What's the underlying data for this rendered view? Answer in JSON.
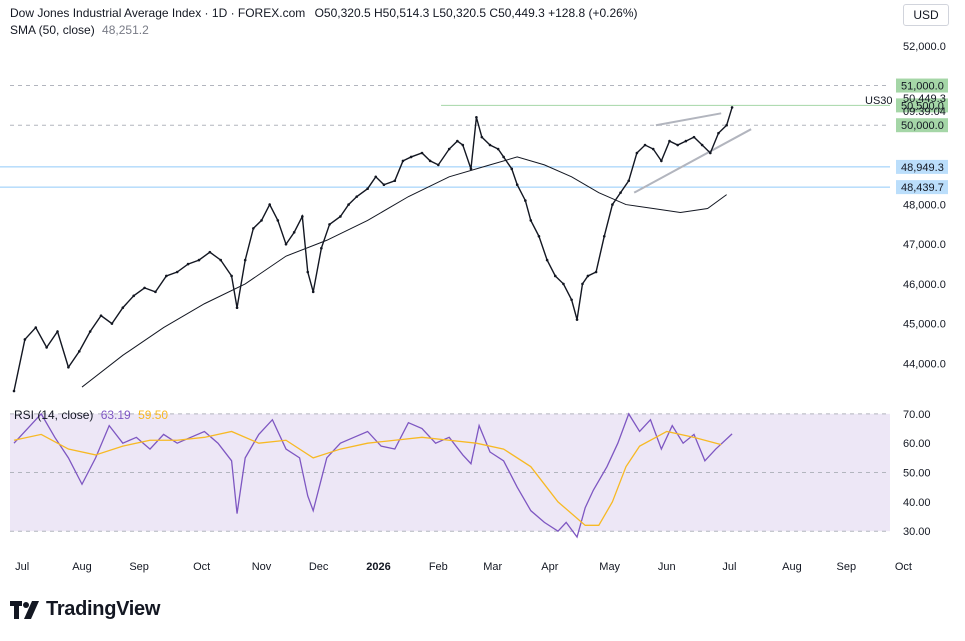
{
  "header": {
    "title": "Dow Jones Industrial Average Index · 1D · FOREX.com",
    "ohlc": "O50,320.5  H50,514.3  L50,320.5  C50,449.3  +128.8 (+0.26%)",
    "sma_label": "SMA (50, close)",
    "sma_value": "48,251.2"
  },
  "currency": "USD",
  "rsi_header": {
    "label": "RSI (14, close)",
    "value1": "63.19",
    "value2": "59.50"
  },
  "symbol_tag": "US30",
  "price_tags": [
    {
      "text": "51,000.0",
      "bg": "#a5d6a7",
      "value": 51000
    },
    {
      "text": "50,500.0",
      "bg": "#a5d6a7",
      "value": 50500
    },
    {
      "text": "50,000.0",
      "bg": "#a5d6a7",
      "value": 50000
    },
    {
      "text": "48,949.3",
      "bg": "#bbdefb",
      "value": 48949.3
    },
    {
      "text": "48,439.7",
      "bg": "#bbdefb",
      "value": 48439.7
    }
  ],
  "last_price": {
    "price": "50,449.3",
    "countdown": "09:39:04"
  },
  "brand": "TradingView",
  "colors": {
    "candle": "#131722",
    "sma": "#131722",
    "rsi": "#7e57c2",
    "rsi_ma": "#f7b924",
    "rsi_band": "#ede7f6",
    "green_tag": "#a5d6a7",
    "blue_tag": "#bbdefb",
    "hline_blue": "#90caf9",
    "trendline": "#b2b5be"
  },
  "chart_data": {
    "type": "line",
    "price": {
      "title": "Dow Jones Industrial Average Index",
      "ylim": [
        43200,
        52400
      ],
      "yticks": [
        44000,
        45000,
        46000,
        47000,
        48000,
        51000,
        52000
      ],
      "ytick_labels": [
        "44,000.0",
        "45,000.0",
        "46,000.0",
        "47,000.0",
        "48,000.0",
        "51,000.0",
        "52,000.0"
      ],
      "close_series": [
        {
          "t": 0,
          "v": 43300
        },
        {
          "t": 0.4,
          "v": 44600
        },
        {
          "t": 0.8,
          "v": 44900
        },
        {
          "t": 1.2,
          "v": 44400
        },
        {
          "t": 1.6,
          "v": 44800
        },
        {
          "t": 2.0,
          "v": 43900
        },
        {
          "t": 2.4,
          "v": 44300
        },
        {
          "t": 2.8,
          "v": 44800
        },
        {
          "t": 3.2,
          "v": 45200
        },
        {
          "t": 3.6,
          "v": 45000
        },
        {
          "t": 4.0,
          "v": 45400
        },
        {
          "t": 4.4,
          "v": 45700
        },
        {
          "t": 4.8,
          "v": 45900
        },
        {
          "t": 5.2,
          "v": 45800
        },
        {
          "t": 5.6,
          "v": 46200
        },
        {
          "t": 6.0,
          "v": 46300
        },
        {
          "t": 6.4,
          "v": 46500
        },
        {
          "t": 6.8,
          "v": 46600
        },
        {
          "t": 7.2,
          "v": 46800
        },
        {
          "t": 7.6,
          "v": 46600
        },
        {
          "t": 8.0,
          "v": 46200
        },
        {
          "t": 8.2,
          "v": 45400
        },
        {
          "t": 8.5,
          "v": 46600
        },
        {
          "t": 8.8,
          "v": 47400
        },
        {
          "t": 9.1,
          "v": 47600
        },
        {
          "t": 9.4,
          "v": 48000
        },
        {
          "t": 9.7,
          "v": 47600
        },
        {
          "t": 10.0,
          "v": 47000
        },
        {
          "t": 10.3,
          "v": 47300
        },
        {
          "t": 10.6,
          "v": 47700
        },
        {
          "t": 10.8,
          "v": 46300
        },
        {
          "t": 11.0,
          "v": 45800
        },
        {
          "t": 11.3,
          "v": 46900
        },
        {
          "t": 11.6,
          "v": 47500
        },
        {
          "t": 12.0,
          "v": 47700
        },
        {
          "t": 12.3,
          "v": 48000
        },
        {
          "t": 12.6,
          "v": 48200
        },
        {
          "t": 13.0,
          "v": 48400
        },
        {
          "t": 13.3,
          "v": 48700
        },
        {
          "t": 13.6,
          "v": 48500
        },
        {
          "t": 14.0,
          "v": 48600
        },
        {
          "t": 14.3,
          "v": 49100
        },
        {
          "t": 14.6,
          "v": 49200
        },
        {
          "t": 15.0,
          "v": 49300
        },
        {
          "t": 15.3,
          "v": 49100
        },
        {
          "t": 15.6,
          "v": 49000
        },
        {
          "t": 16.0,
          "v": 49400
        },
        {
          "t": 16.3,
          "v": 49600
        },
        {
          "t": 16.5,
          "v": 49500
        },
        {
          "t": 16.8,
          "v": 48900
        },
        {
          "t": 17.0,
          "v": 50200
        },
        {
          "t": 17.2,
          "v": 49700
        },
        {
          "t": 17.5,
          "v": 49500
        },
        {
          "t": 17.8,
          "v": 49400
        },
        {
          "t": 18.0,
          "v": 49200
        },
        {
          "t": 18.3,
          "v": 48900
        },
        {
          "t": 18.5,
          "v": 48500
        },
        {
          "t": 18.8,
          "v": 48100
        },
        {
          "t": 19.0,
          "v": 47600
        },
        {
          "t": 19.3,
          "v": 47200
        },
        {
          "t": 19.6,
          "v": 46600
        },
        {
          "t": 19.9,
          "v": 46200
        },
        {
          "t": 20.2,
          "v": 46000
        },
        {
          "t": 20.5,
          "v": 45600
        },
        {
          "t": 20.7,
          "v": 45100
        },
        {
          "t": 20.9,
          "v": 46000
        },
        {
          "t": 21.1,
          "v": 46200
        },
        {
          "t": 21.4,
          "v": 46300
        },
        {
          "t": 21.7,
          "v": 47200
        },
        {
          "t": 22.0,
          "v": 48000
        },
        {
          "t": 22.3,
          "v": 48300
        },
        {
          "t": 22.6,
          "v": 48600
        },
        {
          "t": 22.9,
          "v": 49300
        },
        {
          "t": 23.2,
          "v": 49500
        },
        {
          "t": 23.5,
          "v": 49400
        },
        {
          "t": 23.8,
          "v": 49100
        },
        {
          "t": 24.1,
          "v": 49600
        },
        {
          "t": 24.4,
          "v": 49500
        },
        {
          "t": 24.7,
          "v": 49600
        },
        {
          "t": 25.0,
          "v": 49700
        },
        {
          "t": 25.3,
          "v": 49500
        },
        {
          "t": 25.6,
          "v": 49300
        },
        {
          "t": 25.9,
          "v": 49800
        },
        {
          "t": 26.2,
          "v": 50000
        },
        {
          "t": 26.4,
          "v": 50449.3
        }
      ],
      "sma_series": [
        {
          "t": 2.5,
          "v": 43400
        },
        {
          "t": 4.0,
          "v": 44200
        },
        {
          "t": 5.5,
          "v": 44900
        },
        {
          "t": 7.0,
          "v": 45500
        },
        {
          "t": 8.5,
          "v": 46000
        },
        {
          "t": 10.0,
          "v": 46700
        },
        {
          "t": 11.5,
          "v": 47100
        },
        {
          "t": 13.0,
          "v": 47600
        },
        {
          "t": 14.5,
          "v": 48200
        },
        {
          "t": 16.0,
          "v": 48700
        },
        {
          "t": 17.5,
          "v": 49000
        },
        {
          "t": 18.5,
          "v": 49200
        },
        {
          "t": 19.5,
          "v": 49000
        },
        {
          "t": 20.5,
          "v": 48700
        },
        {
          "t": 21.5,
          "v": 48300
        },
        {
          "t": 22.5,
          "v": 48000
        },
        {
          "t": 23.5,
          "v": 47900
        },
        {
          "t": 24.5,
          "v": 47800
        },
        {
          "t": 25.5,
          "v": 47900
        },
        {
          "t": 26.2,
          "v": 48251.2
        }
      ],
      "trendlines": [
        {
          "from": {
            "t": 22.8,
            "v": 48300
          },
          "to": {
            "t": 27.1,
            "v": 49900
          }
        },
        {
          "from": {
            "t": 23.6,
            "v": 50000
          },
          "to": {
            "t": 26.0,
            "v": 50300
          }
        }
      ],
      "hlines": [
        {
          "v": 51000,
          "style": "dashed"
        },
        {
          "v": 50500,
          "style": "solid-green"
        },
        {
          "v": 50000,
          "style": "dashed"
        },
        {
          "v": 48949.3,
          "style": "solid-blue"
        },
        {
          "v": 48439.7,
          "style": "solid-blue"
        }
      ]
    },
    "rsi": {
      "ylim": [
        27,
        72
      ],
      "yticks": [
        30,
        40,
        50,
        60,
        70
      ],
      "ytick_labels": [
        "30.00",
        "40.00",
        "50.00",
        "60.00",
        "70.00"
      ],
      "rsi_series": [
        {
          "t": 0,
          "v": 60
        },
        {
          "t": 0.5,
          "v": 65
        },
        {
          "t": 1.0,
          "v": 70
        },
        {
          "t": 1.5,
          "v": 62
        },
        {
          "t": 2.0,
          "v": 55
        },
        {
          "t": 2.5,
          "v": 46
        },
        {
          "t": 3.0,
          "v": 55
        },
        {
          "t": 3.5,
          "v": 66
        },
        {
          "t": 4.0,
          "v": 60
        },
        {
          "t": 4.5,
          "v": 62
        },
        {
          "t": 5.0,
          "v": 58
        },
        {
          "t": 5.5,
          "v": 63
        },
        {
          "t": 6.0,
          "v": 60
        },
        {
          "t": 6.5,
          "v": 62
        },
        {
          "t": 7.0,
          "v": 64
        },
        {
          "t": 7.5,
          "v": 60
        },
        {
          "t": 8.0,
          "v": 54
        },
        {
          "t": 8.2,
          "v": 36
        },
        {
          "t": 8.5,
          "v": 55
        },
        {
          "t": 9.0,
          "v": 63
        },
        {
          "t": 9.5,
          "v": 68
        },
        {
          "t": 10.0,
          "v": 58
        },
        {
          "t": 10.5,
          "v": 55
        },
        {
          "t": 10.8,
          "v": 42
        },
        {
          "t": 11.0,
          "v": 37
        },
        {
          "t": 11.5,
          "v": 55
        },
        {
          "t": 12.0,
          "v": 60
        },
        {
          "t": 12.5,
          "v": 62
        },
        {
          "t": 13.0,
          "v": 64
        },
        {
          "t": 13.5,
          "v": 59
        },
        {
          "t": 14.0,
          "v": 58
        },
        {
          "t": 14.5,
          "v": 67
        },
        {
          "t": 15.0,
          "v": 65
        },
        {
          "t": 15.5,
          "v": 60
        },
        {
          "t": 16.0,
          "v": 62
        },
        {
          "t": 16.5,
          "v": 56
        },
        {
          "t": 16.8,
          "v": 53
        },
        {
          "t": 17.1,
          "v": 66
        },
        {
          "t": 17.5,
          "v": 57
        },
        {
          "t": 18.0,
          "v": 54
        },
        {
          "t": 18.5,
          "v": 45
        },
        {
          "t": 19.0,
          "v": 37
        },
        {
          "t": 19.5,
          "v": 33
        },
        {
          "t": 20.0,
          "v": 30
        },
        {
          "t": 20.3,
          "v": 33
        },
        {
          "t": 20.7,
          "v": 28
        },
        {
          "t": 21.0,
          "v": 38
        },
        {
          "t": 21.3,
          "v": 44
        },
        {
          "t": 21.8,
          "v": 52
        },
        {
          "t": 22.2,
          "v": 60
        },
        {
          "t": 22.6,
          "v": 70
        },
        {
          "t": 23.0,
          "v": 64
        },
        {
          "t": 23.4,
          "v": 68
        },
        {
          "t": 23.8,
          "v": 58
        },
        {
          "t": 24.2,
          "v": 66
        },
        {
          "t": 24.6,
          "v": 60
        },
        {
          "t": 25.0,
          "v": 63
        },
        {
          "t": 25.4,
          "v": 54
        },
        {
          "t": 25.8,
          "v": 58
        },
        {
          "t": 26.4,
          "v": 63.19
        }
      ],
      "rsi_ma_series": [
        {
          "t": 0,
          "v": 61
        },
        {
          "t": 1.0,
          "v": 63
        },
        {
          "t": 2.0,
          "v": 58
        },
        {
          "t": 3.0,
          "v": 56
        },
        {
          "t": 4.0,
          "v": 59
        },
        {
          "t": 5.0,
          "v": 61
        },
        {
          "t": 6.0,
          "v": 61
        },
        {
          "t": 7.0,
          "v": 62
        },
        {
          "t": 8.0,
          "v": 64
        },
        {
          "t": 9.0,
          "v": 60
        },
        {
          "t": 10.0,
          "v": 61
        },
        {
          "t": 11.0,
          "v": 55
        },
        {
          "t": 12.0,
          "v": 58
        },
        {
          "t": 13.0,
          "v": 60
        },
        {
          "t": 14.0,
          "v": 61
        },
        {
          "t": 15.0,
          "v": 62
        },
        {
          "t": 16.0,
          "v": 61
        },
        {
          "t": 17.0,
          "v": 60
        },
        {
          "t": 18.0,
          "v": 58
        },
        {
          "t": 19.0,
          "v": 52
        },
        {
          "t": 20.0,
          "v": 40
        },
        {
          "t": 21.0,
          "v": 32
        },
        {
          "t": 21.5,
          "v": 32
        },
        {
          "t": 22.0,
          "v": 40
        },
        {
          "t": 22.5,
          "v": 52
        },
        {
          "t": 23.0,
          "v": 59
        },
        {
          "t": 24.0,
          "v": 64
        },
        {
          "t": 25.0,
          "v": 62
        },
        {
          "t": 26.0,
          "v": 59.5
        }
      ]
    },
    "x_axis": {
      "ticks": [
        {
          "t": 0.3,
          "label": "Jul"
        },
        {
          "t": 2.5,
          "label": "Aug"
        },
        {
          "t": 4.6,
          "label": "Sep"
        },
        {
          "t": 6.9,
          "label": "Oct"
        },
        {
          "t": 9.1,
          "label": "Nov"
        },
        {
          "t": 11.2,
          "label": "Dec"
        },
        {
          "t": 13.4,
          "label": "2026"
        },
        {
          "t": 15.6,
          "label": "Feb"
        },
        {
          "t": 17.6,
          "label": "Mar"
        },
        {
          "t": 19.7,
          "label": "Apr"
        },
        {
          "t": 21.9,
          "label": "May"
        },
        {
          "t": 24.0,
          "label": "Jun"
        },
        {
          "t": 26.3,
          "label": "Jul"
        },
        {
          "t": 28.6,
          "label": "Aug"
        },
        {
          "t": 30.6,
          "label": "Sep"
        },
        {
          "t": 32.7,
          "label": "Oct"
        }
      ]
    }
  }
}
